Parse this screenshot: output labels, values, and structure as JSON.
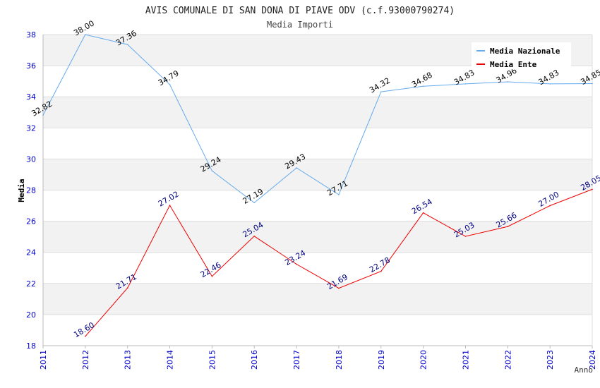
{
  "chart_data": {
    "type": "line",
    "title": "AVIS COMUNALE DI SAN DONA DI PIAVE ODV (c.f.93000790274)",
    "subtitle": "Media Importi",
    "xlabel": "Anno",
    "ylabel": "Media",
    "x": [
      2011,
      2012,
      2013,
      2014,
      2015,
      2016,
      2017,
      2018,
      2019,
      2020,
      2021,
      2022,
      2023,
      2024
    ],
    "x_tick_labels": [
      "2011",
      "2012",
      "2013",
      "2014",
      "2015",
      "2016",
      "2017",
      "2018",
      "2019",
      "2020",
      "2021",
      "2022",
      "2023",
      "2024"
    ],
    "ylim": [
      18,
      38
    ],
    "y_ticks": [
      18,
      20,
      22,
      24,
      26,
      28,
      30,
      32,
      34,
      36,
      38
    ],
    "y_tick_labels": [
      "18",
      "20",
      "22",
      "24",
      "26",
      "28",
      "30",
      "32",
      "34",
      "36",
      "38"
    ],
    "grid": true,
    "legend_position": "top-right",
    "series": [
      {
        "name": "Media Nazionale",
        "color": "#66aaee",
        "label_color": "#000000",
        "x": [
          2011,
          2012,
          2013,
          2014,
          2015,
          2016,
          2017,
          2018,
          2019,
          2020,
          2021,
          2022,
          2023,
          2024
        ],
        "values": [
          32.82,
          38.0,
          37.36,
          34.79,
          29.24,
          27.19,
          29.43,
          27.71,
          34.32,
          34.68,
          34.83,
          34.96,
          34.83,
          34.85
        ],
        "labels": [
          "32.82",
          "38.00",
          "37.36",
          "34.79",
          "29.24",
          "27.19",
          "29.43",
          "27.71",
          "34.32",
          "34.68",
          "34.83",
          "34.96",
          "34.83",
          "34.85"
        ]
      },
      {
        "name": "Media Ente",
        "color": "#ee0000",
        "label_color": "#000080",
        "x": [
          2012,
          2013,
          2014,
          2015,
          2016,
          2017,
          2018,
          2019,
          2020,
          2021,
          2022,
          2023,
          2024
        ],
        "values": [
          18.6,
          21.71,
          27.02,
          22.46,
          25.04,
          23.24,
          21.69,
          22.78,
          26.54,
          25.03,
          25.66,
          27.0,
          28.05
        ],
        "labels": [
          "18.60",
          "21.71",
          "27.02",
          "22.46",
          "25.04",
          "23.24",
          "21.69",
          "22.78",
          "26.54",
          "25.03",
          "25.66",
          "27.00",
          "28.05"
        ]
      }
    ]
  },
  "colors": {
    "tick_label": "#0000cc",
    "band": "#f2f2f2",
    "grid": "#dddddd",
    "axis": "#bbbbbb"
  }
}
